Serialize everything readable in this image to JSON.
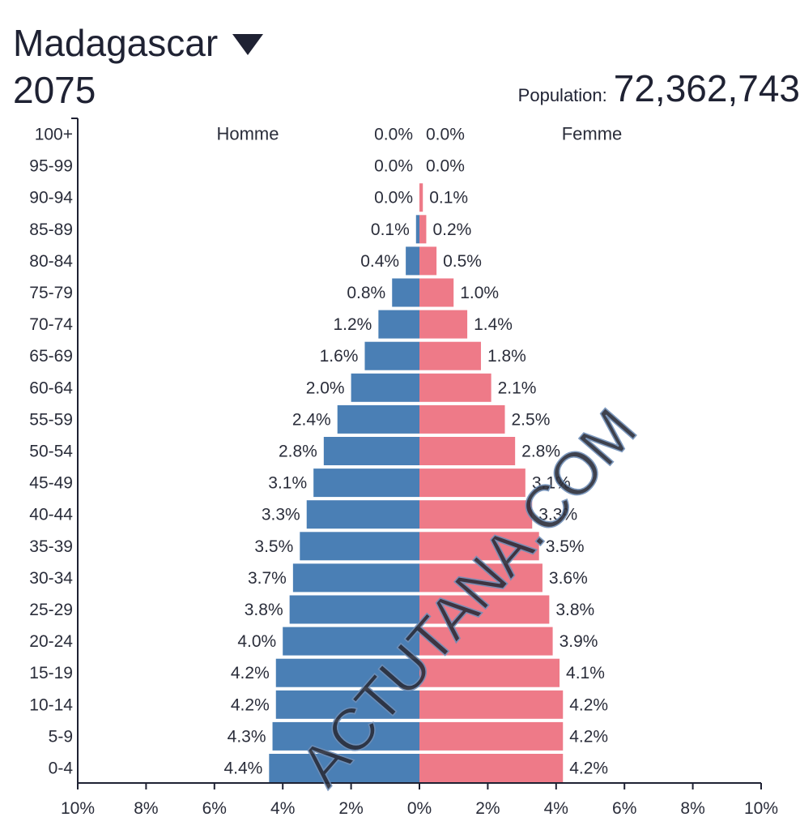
{
  "header": {
    "country": "Madagascar",
    "year": "2075",
    "population_label": "Population:",
    "population_value": "72,362,743"
  },
  "watermark": "ACTUTANA.COM",
  "colors": {
    "male": "#4a7fb5",
    "female": "#ee7a88",
    "axis": "#1f2233"
  },
  "chart_data": {
    "type": "bar",
    "orientation": "horizontal-pyramid",
    "categories": [
      "100+",
      "95-99",
      "90-94",
      "85-89",
      "80-84",
      "75-79",
      "70-74",
      "65-69",
      "60-64",
      "55-59",
      "50-54",
      "45-49",
      "40-44",
      "35-39",
      "30-34",
      "25-29",
      "20-24",
      "15-19",
      "10-14",
      "5-9",
      "0-4"
    ],
    "series": [
      {
        "name": "Homme",
        "values": [
          0.0,
          0.0,
          0.0,
          0.1,
          0.4,
          0.8,
          1.2,
          1.6,
          2.0,
          2.4,
          2.8,
          3.1,
          3.3,
          3.5,
          3.7,
          3.8,
          4.0,
          4.2,
          4.2,
          4.3,
          4.4
        ],
        "labels": [
          "0.0%",
          "0.0%",
          "0.0%",
          "0.1%",
          "0.4%",
          "0.8%",
          "1.2%",
          "1.6%",
          "2.0%",
          "2.4%",
          "2.8%",
          "3.1%",
          "3.3%",
          "3.5%",
          "3.7%",
          "3.8%",
          "4.0%",
          "4.2%",
          "4.2%",
          "4.3%",
          "4.4%"
        ]
      },
      {
        "name": "Femme",
        "values": [
          0.0,
          0.0,
          0.1,
          0.2,
          0.5,
          1.0,
          1.4,
          1.8,
          2.1,
          2.5,
          2.8,
          3.1,
          3.3,
          3.5,
          3.6,
          3.8,
          3.9,
          4.1,
          4.2,
          4.2,
          4.2
        ],
        "labels": [
          "0.0%",
          "0.0%",
          "0.1%",
          "0.2%",
          "0.5%",
          "1.0%",
          "1.4%",
          "1.8%",
          "2.1%",
          "2.5%",
          "2.8%",
          "3.1%",
          "3.3%",
          "3.5%",
          "3.6%",
          "3.8%",
          "3.9%",
          "4.1%",
          "4.2%",
          "4.2%",
          "4.2%"
        ]
      }
    ],
    "xticks": [
      -10,
      -8,
      -6,
      -4,
      -2,
      0,
      2,
      4,
      6,
      8,
      10
    ],
    "xtick_labels": [
      "10%",
      "8%",
      "6%",
      "4%",
      "2%",
      "0%",
      "2%",
      "4%",
      "6%",
      "8%",
      "10%"
    ],
    "xlim": [
      -10,
      10
    ],
    "grid": false
  }
}
